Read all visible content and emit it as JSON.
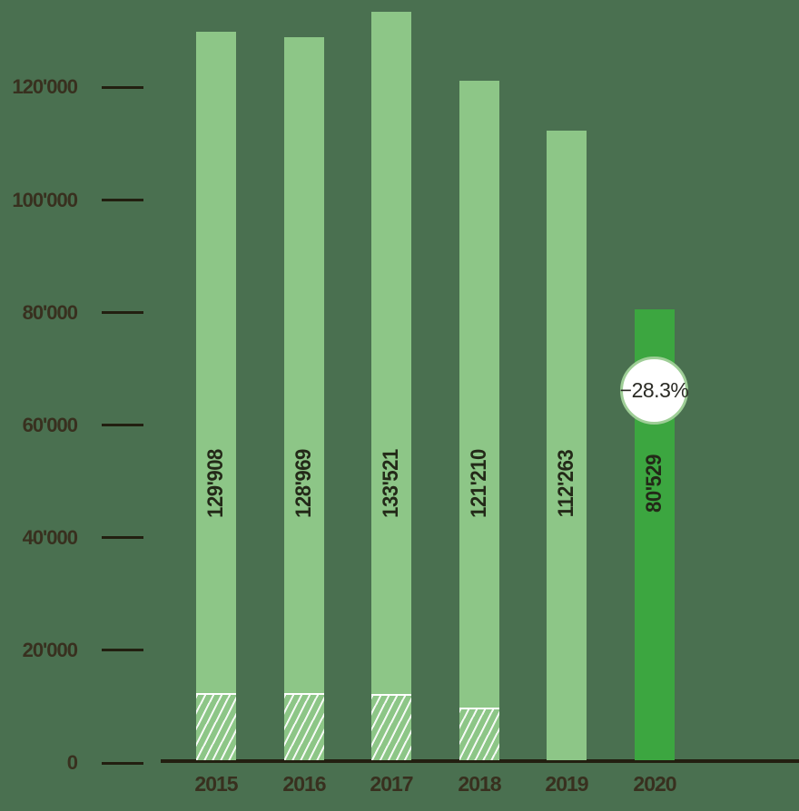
{
  "colors": {
    "background": "#4A7050",
    "bar_light_green": "#8DC687",
    "bar_dark_green": "#3CA640",
    "hatch_stripe": "#FFFFFF",
    "axis_text": "#38301F",
    "axis_line": "#221F10",
    "bar_value_text": "#232918",
    "badge_fill": "#FFFFFF",
    "badge_ring": "#9ECE96",
    "badge_text": "#2B2B25"
  },
  "chart_data": {
    "type": "bar",
    "title": "",
    "categories": [
      "2015",
      "2016",
      "2017",
      "2018",
      "2019",
      "2020"
    ],
    "values": [
      129908,
      128969,
      133521,
      121210,
      112263,
      80529
    ],
    "value_labels": [
      "129'908",
      "128'969",
      "133'521",
      "121'210",
      "112'263",
      "80'529"
    ],
    "bar_styles": [
      "light",
      "light",
      "light",
      "light",
      "light",
      "dark"
    ],
    "hatch_values": [
      12000,
      12000,
      11700,
      9400,
      0,
      0
    ],
    "annotation": {
      "category": "2020",
      "text": "−28.3%"
    },
    "y_axis": {
      "range": [
        0,
        135000
      ],
      "gridlines": false,
      "ticks": [
        {
          "label": "0",
          "value": 0
        },
        {
          "label": "20'000",
          "value": 20000
        },
        {
          "label": "40'000",
          "value": 40000
        },
        {
          "label": "60'000",
          "value": 60000
        },
        {
          "label": "80'000",
          "value": 80000
        },
        {
          "label": "100'000",
          "value": 100000
        },
        {
          "label": "120'000",
          "value": 120000
        }
      ]
    },
    "x_axis": {
      "labels": [
        "2015",
        "2016",
        "2017",
        "2018",
        "2019",
        "2020"
      ]
    },
    "legend": null
  }
}
